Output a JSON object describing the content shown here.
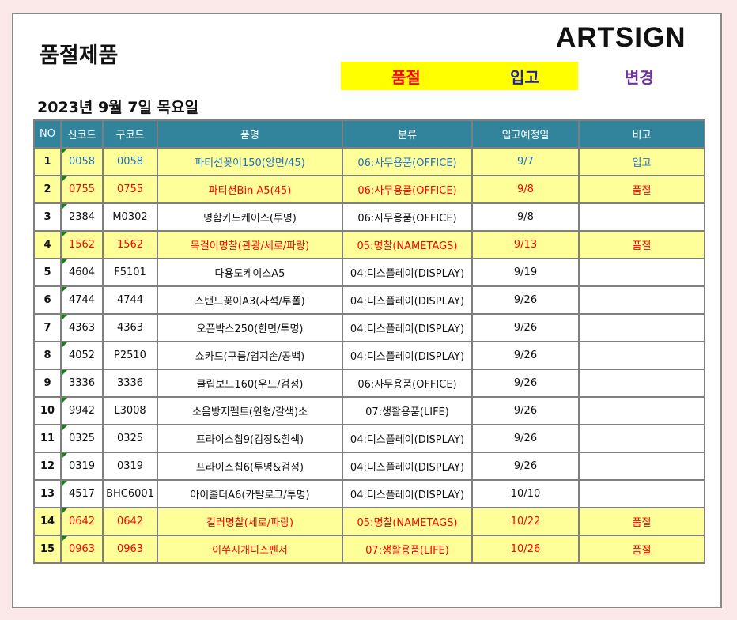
{
  "title": "품절제품",
  "brand": "ARTSIGN",
  "legend": {
    "soldout": "품절",
    "stock": "입고",
    "change": "변경"
  },
  "date": "2023년 9월 7일 목요일",
  "columns": [
    "NO",
    "신코드",
    "구코드",
    "품명",
    "분류",
    "입고예정일",
    "비고"
  ],
  "rows": [
    {
      "no": "1",
      "new": "0058",
      "old": "0058",
      "name": "파티션꽂이150(양면/45)",
      "cat": "06:사무용품(OFFICE)",
      "date": "9/7",
      "note": "입고",
      "style": "blue"
    },
    {
      "no": "2",
      "new": "0755",
      "old": "0755",
      "name": "파티션Bin A5(45)",
      "cat": "06:사무용품(OFFICE)",
      "date": "9/8",
      "note": "품절",
      "style": "red"
    },
    {
      "no": "3",
      "new": "2384",
      "old": "M0302",
      "name": "명함카드케이스(투명)",
      "cat": "06:사무용품(OFFICE)",
      "date": "9/8",
      "note": "",
      "style": "plain"
    },
    {
      "no": "4",
      "new": "1562",
      "old": "1562",
      "name": "목걸이명찰(관광/세로/파랑)",
      "cat": "05:명찰(NAMETAGS)",
      "date": "9/13",
      "note": "품절",
      "style": "red"
    },
    {
      "no": "5",
      "new": "4604",
      "old": "F5101",
      "name": "다용도케이스A5",
      "cat": "04:디스플레이(DISPLAY)",
      "date": "9/19",
      "note": "",
      "style": "plain"
    },
    {
      "no": "6",
      "new": "4744",
      "old": "4744",
      "name": "스탠드꽂이A3(자석/투폴)",
      "cat": "04:디스플레이(DISPLAY)",
      "date": "9/26",
      "note": "",
      "style": "plain"
    },
    {
      "no": "7",
      "new": "4363",
      "old": "4363",
      "name": "오픈박스250(한면/투명)",
      "cat": "04:디스플레이(DISPLAY)",
      "date": "9/26",
      "note": "",
      "style": "plain"
    },
    {
      "no": "8",
      "new": "4052",
      "old": "P2510",
      "name": "쇼카드(구름/엄지손/공백)",
      "cat": "04:디스플레이(DISPLAY)",
      "date": "9/26",
      "note": "",
      "style": "plain"
    },
    {
      "no": "9",
      "new": "3336",
      "old": "3336",
      "name": "클립보드160(우드/검정)",
      "cat": "06:사무용품(OFFICE)",
      "date": "9/26",
      "note": "",
      "style": "plain"
    },
    {
      "no": "10",
      "new": "9942",
      "old": "L3008",
      "name": "소음방지펠트(원형/갈색)소",
      "cat": "07:생활용품(LIFE)",
      "date": "9/26",
      "note": "",
      "style": "plain"
    },
    {
      "no": "11",
      "new": "0325",
      "old": "0325",
      "name": "프라이스칩9(검정&흰색)",
      "cat": "04:디스플레이(DISPLAY)",
      "date": "9/26",
      "note": "",
      "style": "plain"
    },
    {
      "no": "12",
      "new": "0319",
      "old": "0319",
      "name": "프라이스칩6(투명&검정)",
      "cat": "04:디스플레이(DISPLAY)",
      "date": "9/26",
      "note": "",
      "style": "plain"
    },
    {
      "no": "13",
      "new": "4517",
      "old": "BHC6001",
      "name": "아이홀더A6(카탈로그/투명)",
      "cat": "04:디스플레이(DISPLAY)",
      "date": "10/10",
      "note": "",
      "style": "plain"
    },
    {
      "no": "14",
      "new": "0642",
      "old": "0642",
      "name": "컬러명찰(세로/파랑)",
      "cat": "05:명찰(NAMETAGS)",
      "date": "10/22",
      "note": "품절",
      "style": "red"
    },
    {
      "no": "15",
      "new": "0963",
      "old": "0963",
      "name": "이쑤시개디스펜서",
      "cat": "07:생활용품(LIFE)",
      "date": "10/26",
      "note": "품절",
      "style": "red"
    }
  ]
}
